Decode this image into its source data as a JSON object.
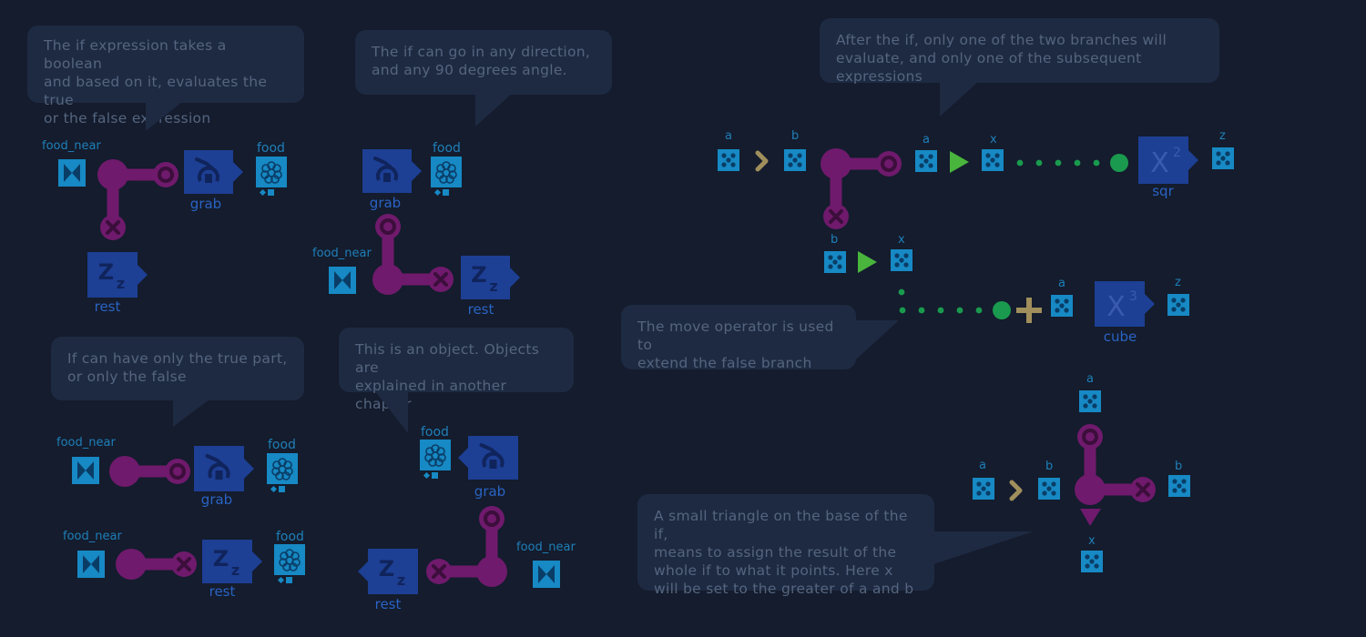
{
  "bubbles": {
    "if_intro": "The if expression takes a boolean\nand based on it, evaluates the true\nor the false expression",
    "direction": "The if can go in any direction,\nand any 90 degrees angle.",
    "partial": "If can have only the true  part,\nor only the false",
    "object": "This is an object. Objects are\nexplained in another chapter",
    "branches": "After the if, only one of the two branches will\nevaluate, and only one of the subsequent expressions",
    "move": "The move operator is used to\nextend the false branch",
    "assign": "A small triangle on the base of the if,\nmeans to assign the result of the\nwhole if to what it points. Here x\nwill be set to the greater of a and b"
  },
  "labels": {
    "food_near": "food_near",
    "food": "food",
    "grab": "grab",
    "rest": "rest",
    "sqr": "sqr",
    "cube": "cube",
    "a": "a",
    "b": "b",
    "x": "x",
    "z": "z",
    "square_exponent": "2",
    "cube_exponent": "3"
  },
  "colors": {
    "background": "#141c2d",
    "bubble": "#1e2a42",
    "bubble_text": "#55657f",
    "if_node": "#6f1a6c",
    "function_block": "#1d3f94",
    "object_tile": "#1789c4",
    "label_text": "#2a63c4",
    "move_dot": "#1a9a4e",
    "arrow_green": "#49b53d",
    "chevron_tan": "#a08f5c"
  }
}
